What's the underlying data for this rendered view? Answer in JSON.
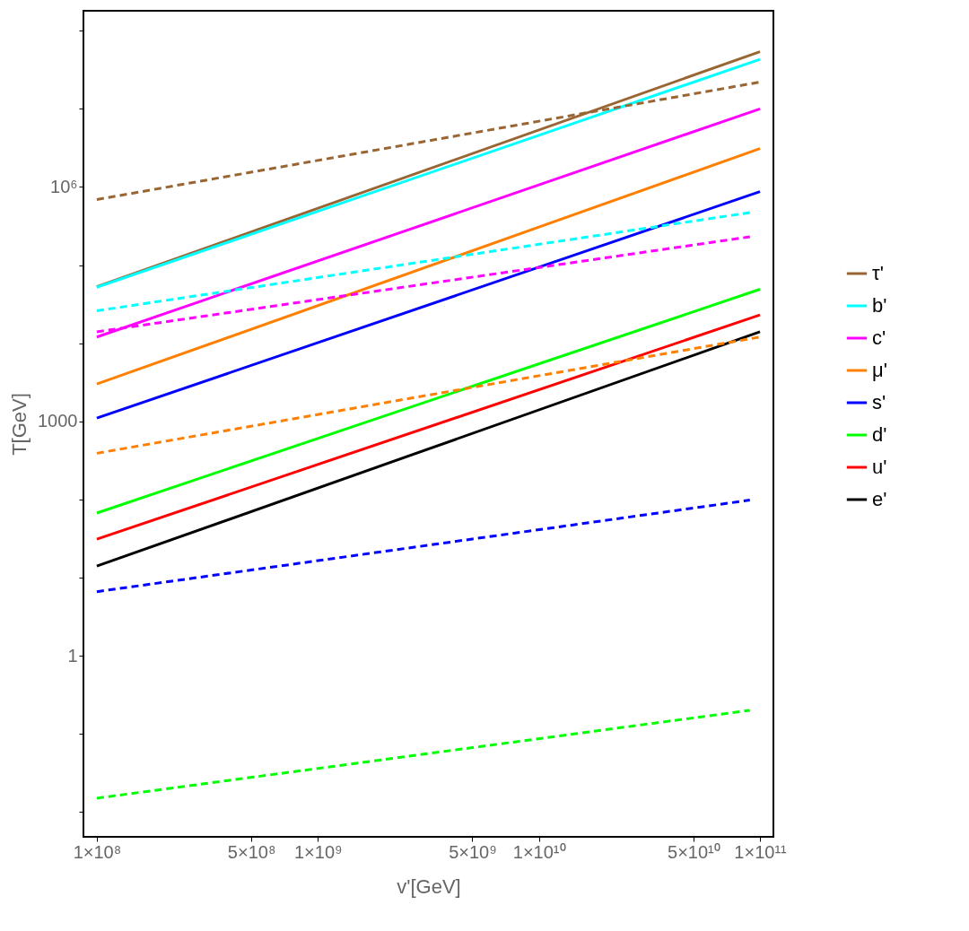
{
  "chart_data": {
    "type": "line",
    "xlabel": "v'[GeV]",
    "ylabel": "T[GeV]",
    "log": "xy",
    "grid": false,
    "legend": "right",
    "xlim": [
      87000000.0,
      115000000000.0
    ],
    "ylim": [
      0.0048,
      180000000.0
    ],
    "xticks": [
      {
        "value": 100000000.0,
        "label": "1×10⁸"
      },
      {
        "value": 500000000.0,
        "label": "5×10⁸"
      },
      {
        "value": 1000000000.0,
        "label": "1×10⁹"
      },
      {
        "value": 5000000000.0,
        "label": "5×10⁹"
      },
      {
        "value": 10000000000.0,
        "label": "1×10¹⁰"
      },
      {
        "value": 50000000000.0,
        "label": "5×10¹⁰"
      },
      {
        "value": 100000000000.0,
        "label": "1×10¹¹"
      }
    ],
    "yticks": [
      {
        "value": 0.01,
        "label": null
      },
      {
        "value": 0.1,
        "label": null
      },
      1,
      {
        "value": 10,
        "label": null
      },
      {
        "value": 100,
        "label": null
      },
      1000,
      {
        "value": 10000,
        "label": null
      },
      {
        "value": 100000,
        "label": null
      },
      {
        "value": 1000000,
        "label": "10⁶"
      },
      {
        "value": 10000000,
        "label": null
      },
      {
        "value": 100000000,
        "label": null
      }
    ],
    "series": [
      {
        "name": "τ'",
        "color": "#996633",
        "line_style": "solid",
        "x": [
          100000000.0,
          100000000000.0
        ],
        "values": [
          53000,
          54000000
        ]
      },
      {
        "name": "b'",
        "color": "#00ffff",
        "line_style": "solid",
        "x": [
          100000000.0,
          100000000000.0
        ],
        "values": [
          52000,
          43000000
        ]
      },
      {
        "name": "c'",
        "color": "#ff00ff",
        "line_style": "solid",
        "x": [
          100000000.0,
          100000000000.0
        ],
        "values": [
          12000,
          10000000
        ]
      },
      {
        "name": "μ'",
        "color": "#ff8000",
        "line_style": "solid",
        "x": [
          100000000.0,
          100000000000.0
        ],
        "values": [
          3000,
          3100000
        ]
      },
      {
        "name": "s'",
        "color": "#0000ff",
        "line_style": "solid",
        "x": [
          100000000.0,
          100000000000.0
        ],
        "values": [
          1100,
          870000
        ]
      },
      {
        "name": "d'",
        "color": "#00ff00",
        "line_style": "solid",
        "x": [
          100000000.0,
          100000000000.0
        ],
        "values": [
          67,
          49000
        ]
      },
      {
        "name": "u'",
        "color": "#ff0000",
        "line_style": "solid",
        "x": [
          100000000.0,
          100000000000.0
        ],
        "values": [
          31,
          23000
        ]
      },
      {
        "name": "e'",
        "color": "#000000",
        "line_style": "solid",
        "x": [
          100000000.0,
          100000000000.0
        ],
        "values": [
          14,
          14000
        ]
      },
      {
        "color": "#996633",
        "line_style": "dashed",
        "x": [
          100000000.0,
          100000000000.0
        ],
        "values": [
          690000,
          22000000
        ]
      },
      {
        "color": "#00ffff",
        "line_style": "dashed",
        "x": [
          100000000.0,
          90000000000.0
        ],
        "values": [
          26000,
          470000
        ]
      },
      {
        "color": "#ff00ff",
        "line_style": "dashed",
        "x": [
          100000000.0,
          90000000000.0
        ],
        "values": [
          14000,
          230000
        ]
      },
      {
        "color": "#ff8000",
        "line_style": "dashed",
        "x": [
          100000000.0,
          100000000000.0
        ],
        "values": [
          390,
          12000
        ]
      },
      {
        "color": "#0000ff",
        "line_style": "dashed",
        "x": [
          100000000.0,
          90000000000.0
        ],
        "values": [
          6.6,
          98
        ]
      },
      {
        "color": "#00ff00",
        "line_style": "dashed",
        "x": [
          100000000.0,
          90000000000.0
        ],
        "values": [
          0.015,
          0.2
        ]
      }
    ]
  }
}
